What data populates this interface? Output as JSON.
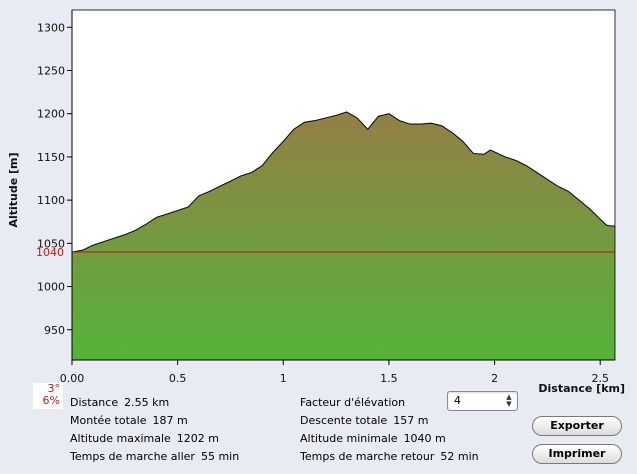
{
  "chart_data": {
    "type": "area",
    "xlabel": "Distance [km]",
    "ylabel": "Altitude [m]",
    "xlim": [
      0,
      2.57
    ],
    "ylim": [
      915,
      1320
    ],
    "x_ticks": [
      "0.00",
      "0.5",
      "1",
      "1.5",
      "2",
      "2.5"
    ],
    "x_tick_values": [
      0,
      0.5,
      1,
      1.5,
      2,
      2.5
    ],
    "y_ticks": [
      "950",
      "1000",
      "1050",
      "1100",
      "1150",
      "1200",
      "1250",
      "1300"
    ],
    "y_tick_values": [
      950,
      1000,
      1050,
      1100,
      1150,
      1200,
      1250,
      1300
    ],
    "reference_line": {
      "value": 1040,
      "label": "1040",
      "color": "#c01818"
    },
    "x": [
      0.0,
      0.05,
      0.1,
      0.15,
      0.2,
      0.25,
      0.3,
      0.35,
      0.4,
      0.45,
      0.5,
      0.55,
      0.6,
      0.65,
      0.7,
      0.75,
      0.8,
      0.85,
      0.9,
      0.95,
      1.0,
      1.05,
      1.1,
      1.15,
      1.2,
      1.25,
      1.3,
      1.35,
      1.4,
      1.45,
      1.5,
      1.55,
      1.6,
      1.65,
      1.7,
      1.75,
      1.8,
      1.85,
      1.9,
      1.95,
      1.98,
      2.05,
      2.1,
      2.15,
      2.2,
      2.25,
      2.3,
      2.35,
      2.4,
      2.45,
      2.5,
      2.53,
      2.55
    ],
    "y": [
      1040,
      1042,
      1048,
      1052,
      1056,
      1060,
      1065,
      1072,
      1080,
      1084,
      1088,
      1092,
      1105,
      1110,
      1116,
      1122,
      1128,
      1132,
      1140,
      1155,
      1168,
      1182,
      1190,
      1192,
      1195,
      1198,
      1202,
      1195,
      1182,
      1197,
      1200,
      1192,
      1188,
      1188,
      1189,
      1186,
      1178,
      1168,
      1154,
      1153,
      1158,
      1150,
      1146,
      1140,
      1132,
      1124,
      1116,
      1110,
      1100,
      1090,
      1078,
      1071,
      1070
    ]
  },
  "slope": {
    "degrees": "3°",
    "percent": "6%"
  },
  "stats": {
    "distance_label": "Distance",
    "distance_value": "2.55 km",
    "ascent_label": "Montée totale",
    "ascent_value": "187 m",
    "max_alt_label": "Altitude maximale",
    "max_alt_value": "1202 m",
    "walk_out_label": "Temps de marche aller",
    "walk_out_value": "55 min",
    "elev_factor_label": "Facteur d'élévation",
    "descent_label": "Descente totale",
    "descent_value": "157 m",
    "min_alt_label": "Altitude minimale",
    "min_alt_value": "1040 m",
    "walk_back_label": "Temps de marche retour",
    "walk_back_value": "52 min"
  },
  "elevation_factor": {
    "selected": "4"
  },
  "buttons": {
    "export": "Exporter",
    "print": "Imprimer"
  },
  "colors": {
    "fill_top": "#947f45",
    "fill_bottom": "#55b33a",
    "reference": "#c01818"
  }
}
